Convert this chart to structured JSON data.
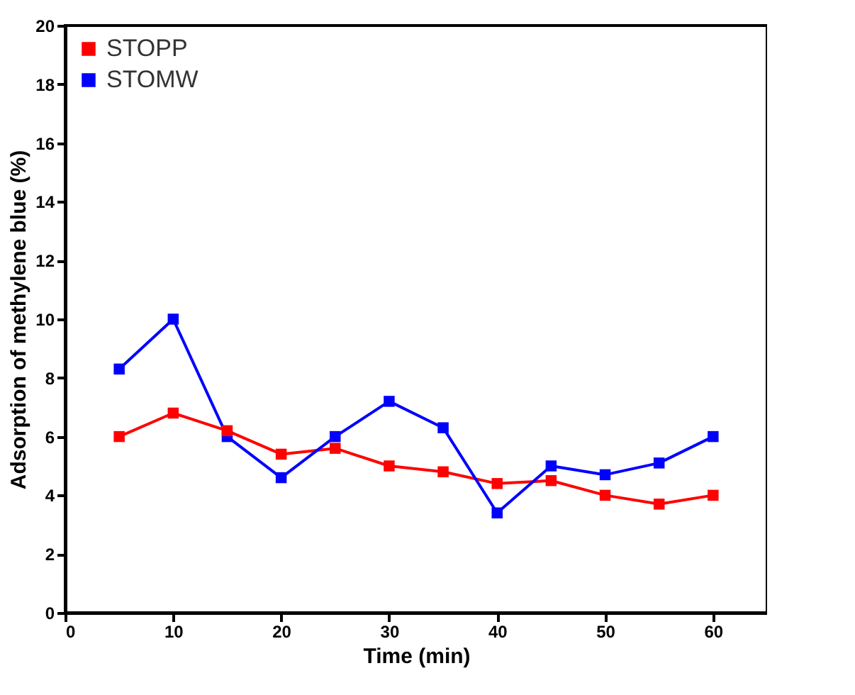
{
  "chart_data": {
    "type": "line",
    "xlabel": "Time (min)",
    "ylabel": "Adsorption of methylene blue (%)",
    "x": [
      5,
      10,
      15,
      20,
      25,
      30,
      35,
      40,
      45,
      50,
      55,
      60
    ],
    "series": [
      {
        "name": "STOPP",
        "color": "#ff0000",
        "values": [
          6.0,
          6.8,
          6.2,
          5.4,
          5.6,
          5.0,
          4.8,
          4.4,
          4.5,
          4.0,
          3.7,
          4.0
        ]
      },
      {
        "name": "STOMW",
        "color": "#0000ff",
        "values": [
          8.3,
          10.0,
          6.0,
          4.6,
          6.0,
          7.2,
          6.3,
          3.4,
          5.0,
          4.7,
          5.1,
          6.0
        ]
      }
    ],
    "xlim": [
      0,
      65
    ],
    "xticks": [
      0,
      10,
      20,
      30,
      40,
      50,
      60
    ],
    "ylim": [
      0,
      20
    ],
    "yticks": [
      0,
      2,
      4,
      6,
      8,
      10,
      12,
      14,
      16,
      18,
      20
    ],
    "grid": false,
    "legend": "top left",
    "marker": "square",
    "line_style": "solid"
  }
}
